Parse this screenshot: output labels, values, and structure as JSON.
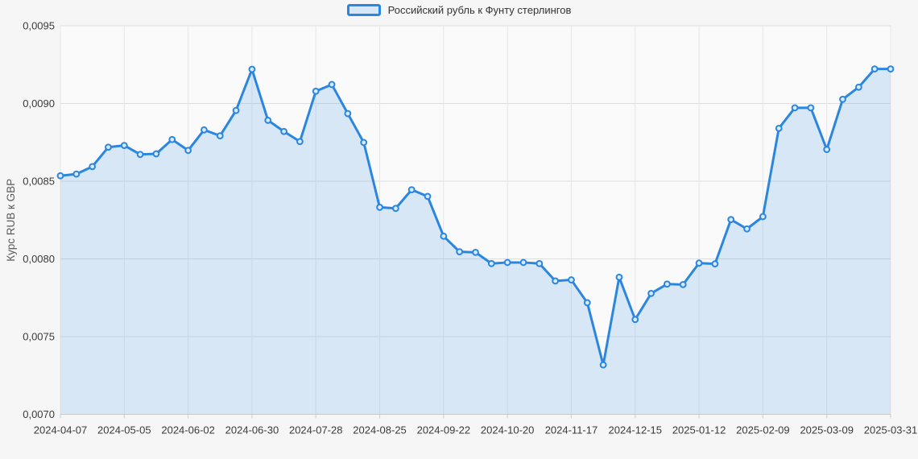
{
  "colors": {
    "line": "#2b86e0",
    "area_fill": "rgba(43,134,224,0.16)",
    "marker_fill": "#d9eafb",
    "plot_background": "#fafafa",
    "page_background": "#f6f6f6",
    "grid_horizontal": "#dedede",
    "grid_vertical": "#e6e6e6",
    "axis_line": "#c8c8c8",
    "tick_mark": "#cccccc",
    "tick_text": "#3a3a3a",
    "axis_title_text": "#595959"
  },
  "legend": {
    "label": "Российский рубль к Фунту стерлингов"
  },
  "chart_data": {
    "type": "area",
    "series_name": "Российский рубль к Фунту стерлингов",
    "ylabel": "Курс RUB к GBP",
    "xlabel": "",
    "grid": true,
    "legend_position": "top-center",
    "ylim": [
      0.007,
      0.0095
    ],
    "y_tick_step": 0.0005,
    "y_tick_labels": [
      "0,0070",
      "0,0075",
      "0,0080",
      "0,0085",
      "0,0090",
      "0,0095"
    ],
    "x": [
      "2024-04-07",
      "2024-04-14",
      "2024-04-21",
      "2024-04-28",
      "2024-05-05",
      "2024-05-12",
      "2024-05-19",
      "2024-05-26",
      "2024-06-02",
      "2024-06-09",
      "2024-06-16",
      "2024-06-23",
      "2024-06-30",
      "2024-07-07",
      "2024-07-14",
      "2024-07-21",
      "2024-07-28",
      "2024-08-04",
      "2024-08-11",
      "2024-08-18",
      "2024-08-25",
      "2024-09-01",
      "2024-09-08",
      "2024-09-15",
      "2024-09-22",
      "2024-09-29",
      "2024-10-06",
      "2024-10-13",
      "2024-10-20",
      "2024-10-27",
      "2024-11-03",
      "2024-11-10",
      "2024-11-17",
      "2024-11-24",
      "2024-12-01",
      "2024-12-08",
      "2024-12-15",
      "2024-12-22",
      "2024-12-29",
      "2025-01-05",
      "2025-01-12",
      "2025-01-19",
      "2025-01-26",
      "2025-02-02",
      "2025-02-09",
      "2025-02-16",
      "2025-02-23",
      "2025-03-02",
      "2025-03-09",
      "2025-03-16",
      "2025-03-23",
      "2025-03-30",
      "2025-03-31"
    ],
    "values": [
      0.008535,
      0.008546,
      0.008594,
      0.008719,
      0.00873,
      0.008672,
      0.008676,
      0.008768,
      0.008698,
      0.00883,
      0.008792,
      0.008955,
      0.00922,
      0.008892,
      0.00882,
      0.008755,
      0.009079,
      0.009122,
      0.008935,
      0.008749,
      0.008332,
      0.008325,
      0.008445,
      0.008402,
      0.008146,
      0.008046,
      0.008042,
      0.00797,
      0.007977,
      0.007977,
      0.00797,
      0.007858,
      0.007865,
      0.007718,
      0.007318,
      0.007882,
      0.00761,
      0.007778,
      0.007838,
      0.007835,
      0.007973,
      0.007968,
      0.008253,
      0.008193,
      0.008272,
      0.00884,
      0.008972,
      0.008972,
      0.008704,
      0.009027,
      0.009105,
      0.009222,
      0.009222
    ],
    "x_tick_indices": [
      0,
      4,
      8,
      12,
      16,
      20,
      24,
      28,
      32,
      36,
      40,
      44,
      48,
      52
    ],
    "x_tick_labels": [
      "2024-04-07",
      "2024-05-05",
      "2024-06-02",
      "2024-06-30",
      "2024-07-28",
      "2024-08-25",
      "2024-09-22",
      "2024-10-20",
      "2024-11-17",
      "2024-12-15",
      "2025-01-12",
      "2025-02-09",
      "2025-03-09",
      "2025-03-31"
    ]
  }
}
